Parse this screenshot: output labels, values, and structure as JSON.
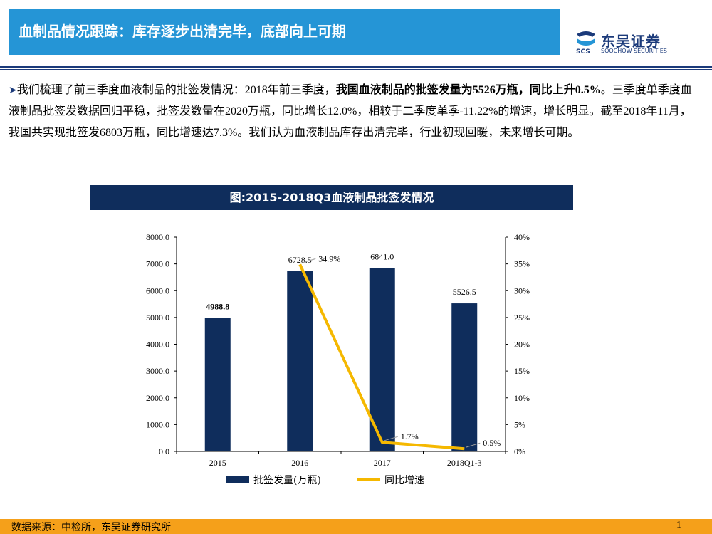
{
  "slide": {
    "title": "血制品情况跟踪：库存逐步出清完毕，底部向上可期",
    "bullet_symbol": "➤",
    "paragraph": {
      "part1": "我们梳理了前三季度血液制品的批签发情况：2018年前三季度，",
      "bold1": "我国血液制品的批签发量为5526万瓶，同比上升0.5%",
      "part2": "。三季度单季度血液制品批签发数据回归平稳，批签发数量在2020万瓶，同比增长12.0%，相较于二季度单季-11.22%的增速，增长明显。截至2018年11月，我国共实现批签发6803万瓶，同比增速达7.3%。我们认为血液制品库存出清完毕，行业初现回暖，未来增长可期。"
    },
    "chart_heading": "图:2015-2018Q3血液制品批签发情况",
    "source": "数据来源：中检所，东吴证券研究所",
    "page_number": "1"
  },
  "logo": {
    "cn": "东吴证券",
    "en": "SOOCHOW SECURITIES",
    "mark": "SCS"
  },
  "colors": {
    "title_bar": "#2595d6",
    "navy": "#0f2d5c",
    "bar": "#0f2d5c",
    "line": "#f5b800",
    "footer": "#f5a01a"
  },
  "chart_data": {
    "type": "bar+line",
    "categories": [
      "2015",
      "2016",
      "2017",
      "2018Q1-3"
    ],
    "series": [
      {
        "name": "批签发量(万瓶)",
        "type": "bar",
        "axis": "left",
        "values": [
          4988.8,
          6728.5,
          6841.0,
          5526.5
        ],
        "labels": [
          "4988.8",
          "6728.5",
          "6841.0",
          "5526.5"
        ]
      },
      {
        "name": "同比增速",
        "type": "line",
        "axis": "right",
        "values": [
          null,
          34.9,
          1.7,
          0.5
        ],
        "labels": [
          "",
          "34.9%",
          "1.7%",
          "0.5%"
        ]
      }
    ],
    "left_axis": {
      "min": 0,
      "max": 8000,
      "ticks": [
        "0.0",
        "1000.0",
        "2000.0",
        "3000.0",
        "4000.0",
        "5000.0",
        "6000.0",
        "7000.0",
        "8000.0"
      ]
    },
    "right_axis": {
      "min": 0,
      "max": 40,
      "ticks": [
        "0%",
        "5%",
        "10%",
        "15%",
        "20%",
        "25%",
        "30%",
        "35%",
        "40%"
      ]
    },
    "legend": "bottom",
    "grid": false
  }
}
